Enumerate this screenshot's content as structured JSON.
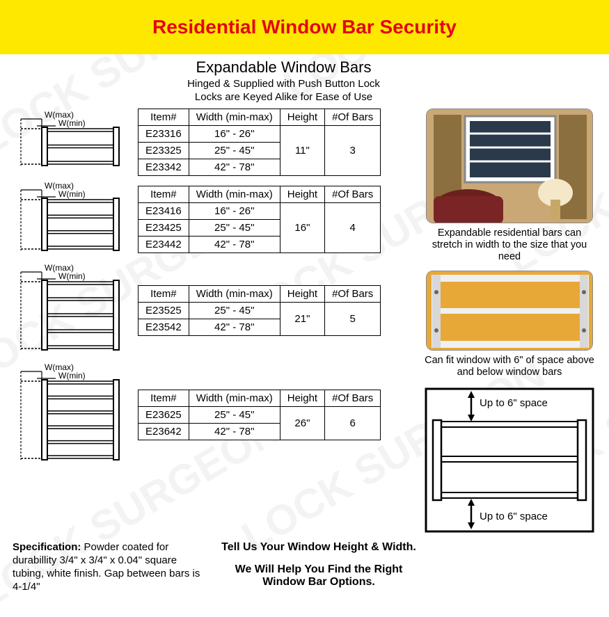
{
  "watermark": {
    "text": "LOCK SURGEON",
    "color": "#e8e8e8"
  },
  "header": {
    "title": "Residential Window Bar Security",
    "band_color": "#ffe800",
    "title_color": "#e30613"
  },
  "section": {
    "title": "Expandable Window Bars",
    "subtitle_line1": "Hinged & Supplied with Push Button Lock",
    "subtitle_line2": "Locks are Keyed Alike for Ease of Use"
  },
  "table_headers": {
    "item": "Item#",
    "width": "Width (min-max)",
    "height": "Height",
    "bars": "#Of Bars"
  },
  "diagram_labels": {
    "wmax": "W(max)",
    "wmin": "W(min)"
  },
  "tables": [
    {
      "height": "11\"",
      "bars": "3",
      "diagram_bars": 3,
      "rows": [
        {
          "item": "E23316",
          "width": "16\" - 26\""
        },
        {
          "item": "E23325",
          "width": "25\" - 45\""
        },
        {
          "item": "E23342",
          "width": "42\" - 78\""
        }
      ]
    },
    {
      "height": "16\"",
      "bars": "4",
      "diagram_bars": 4,
      "rows": [
        {
          "item": "E23416",
          "width": "16\" - 26\""
        },
        {
          "item": "E23425",
          "width": "25\" - 45\""
        },
        {
          "item": "E23442",
          "width": "42\" - 78\""
        }
      ]
    },
    {
      "height": "21\"",
      "bars": "5",
      "diagram_bars": 5,
      "rows": [
        {
          "item": "E23525",
          "width": "25\" - 45\""
        },
        {
          "item": "E23542",
          "width": "42\" - 78\""
        }
      ]
    },
    {
      "height": "26\"",
      "bars": "6",
      "diagram_bars": 6,
      "rows": [
        {
          "item": "E23625",
          "width": "25\" - 45\""
        },
        {
          "item": "E23642",
          "width": "42\" - 78\""
        }
      ]
    }
  ],
  "right": {
    "photo1_caption": "Expandable residential bars can stretch in width to the size that you need",
    "photo2_caption": "Can fit window with 6\" of space above and below window bars",
    "space_label_top": "Up to 6\" space",
    "space_label_bottom": "Up to 6\" space"
  },
  "footer": {
    "spec_label": "Specification:",
    "spec_text": " Powder coated for durabillity 3/4\" x 3/4\" x 0.04\" square tubing, white finish. Gap between bars is 4-1/4\"",
    "cta_line1": "Tell Us Your Window Height & Width.",
    "cta_line2": "We Will Help You Find the Right Window Bar Options."
  },
  "colors": {
    "border": "#000000",
    "text": "#000000",
    "table_border": "#000000",
    "diagram_stroke": "#000000",
    "photo1_bg": "#d4b896",
    "photo2_bg": "#e8a838"
  }
}
